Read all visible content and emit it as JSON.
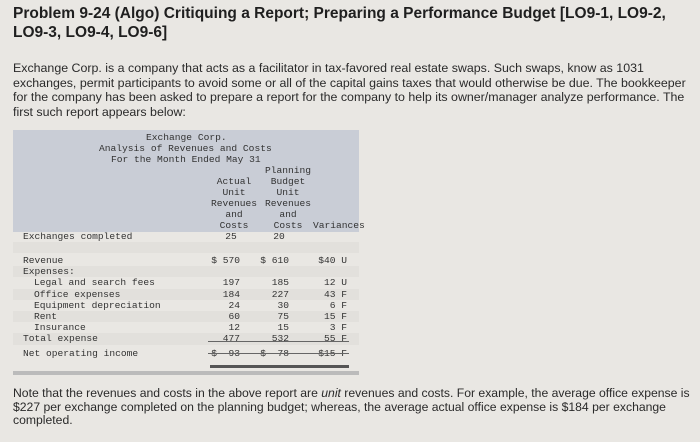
{
  "problem": {
    "title": "Problem 9-24 (Algo) Critiquing a Report; Preparing a Performance Budget [LO9-1, LO9-2, LO9-3, LO9-4, LO9-6]",
    "intro": "Exchange Corp. is a company that acts as a facilitator in tax-favored real estate swaps. Such swaps, know as 1031 exchanges, permit participants to avoid some or all of the capital gains taxes that would otherwise be due. The bookkeeper for the company has been asked to prepare a report for the company to help its owner/manager analyze performance. The first such report appears below:"
  },
  "report": {
    "company": "Exchange Corp.",
    "subtitle": "Analysis of Revenues and Costs",
    "period": "For the Month Ended May 31",
    "columns": {
      "actual": "Actual\nUnit\nRevenues\nand\nCosts",
      "planning": "Planning\nBudget\nUnit\nRevenues\nand\nCosts",
      "variances": "Variances"
    },
    "exchanges": {
      "label": "Exchanges completed",
      "actual": "25",
      "planning": "20"
    },
    "rows": [
      {
        "label": "Revenue",
        "actual": "$ 570",
        "planning": "$ 610",
        "variance": "$40 U",
        "indent": false
      },
      {
        "label": "Expenses:",
        "actual": "",
        "planning": "",
        "variance": "",
        "indent": false
      },
      {
        "label": "Legal and search fees",
        "actual": "197",
        "planning": "185",
        "variance": "12 U",
        "indent": true
      },
      {
        "label": "Office expenses",
        "actual": "184",
        "planning": "227",
        "variance": "43 F",
        "indent": true
      },
      {
        "label": "Equipment depreciation",
        "actual": "24",
        "planning": "30",
        "variance": "6 F",
        "indent": true
      },
      {
        "label": "Rent",
        "actual": "60",
        "planning": "75",
        "variance": "15 F",
        "indent": true
      },
      {
        "label": "Insurance",
        "actual": "12",
        "planning": "15",
        "variance": "3 F",
        "indent": true
      },
      {
        "label": "Total expense",
        "actual": "477",
        "planning": "532",
        "variance": "55 F",
        "indent": false
      },
      {
        "label": "Net operating income",
        "actual": "$  93",
        "planning": "$  78",
        "variance": "$15 F",
        "indent": false
      }
    ]
  },
  "note": {
    "before_italic": "Note that the revenues and costs in the above report are ",
    "italic": "unit",
    "after_italic": " revenues and costs. For example, the average office expense is $227 per exchange completed on the planning budget; whereas, the average actual office expense is $184 per exchange completed."
  }
}
